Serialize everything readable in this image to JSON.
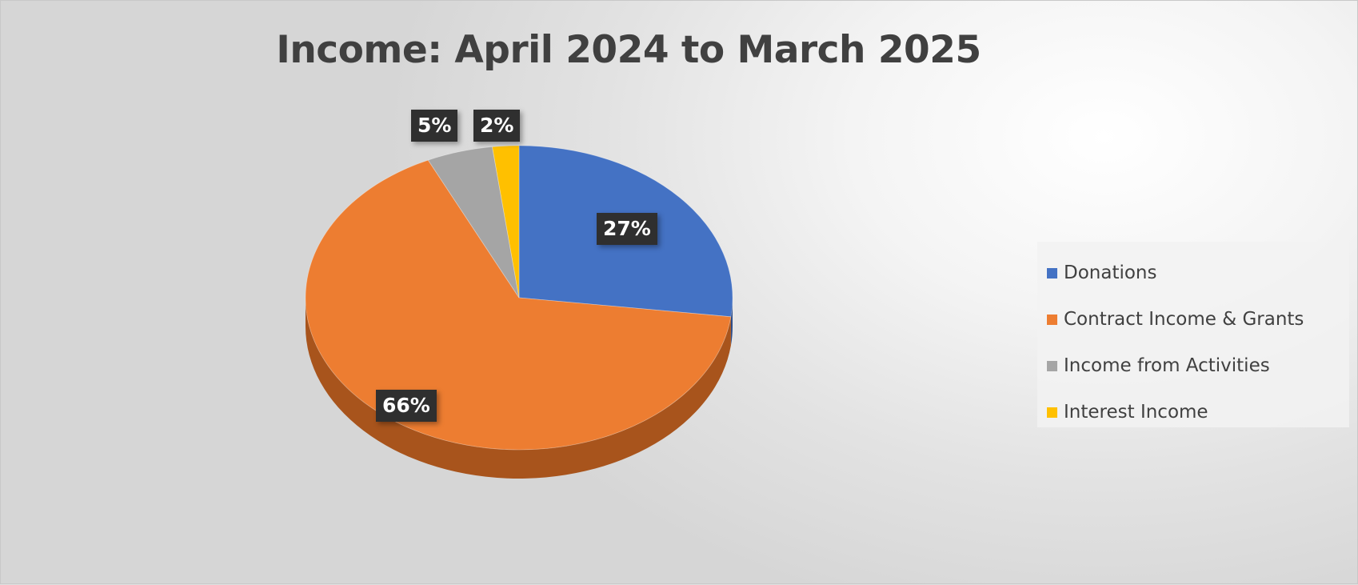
{
  "chart_data": {
    "type": "pie",
    "title": "Income: April 2024 to March 2025",
    "three_d": true,
    "categories": [
      "Donations",
      "Contract Income & Grants",
      "Income from Activities",
      "Interest Income"
    ],
    "values": [
      27,
      66,
      5,
      2
    ],
    "value_unit": "%",
    "data_labels": [
      "27%",
      "66%",
      "5%",
      "2%"
    ],
    "colors": [
      "#4472c4",
      "#ed7d31",
      "#a5a5a5",
      "#ffc000"
    ],
    "side_colors": [
      "#2e4e8a",
      "#a8541c",
      "#6e6e6e",
      "#b08400"
    ],
    "legend_position": "right"
  }
}
